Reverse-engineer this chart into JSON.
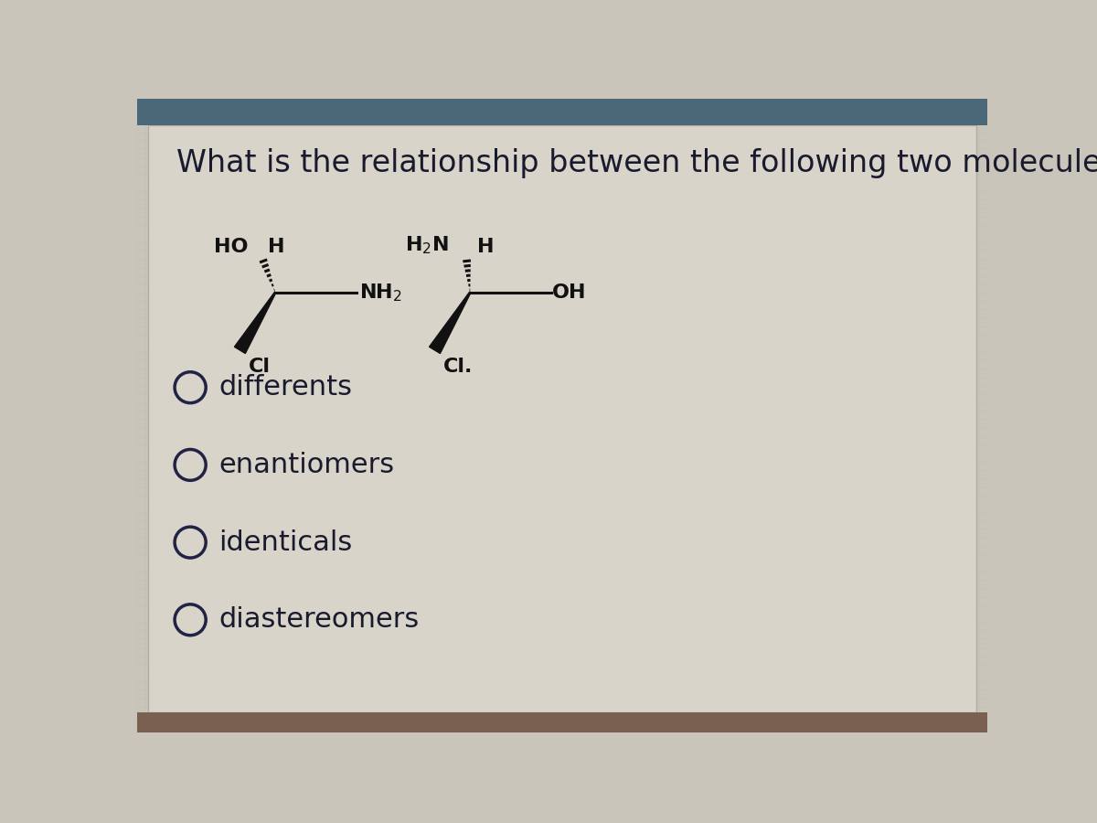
{
  "title": "What is the relationship between the following two molecules?",
  "title_fontsize": 24,
  "background_color": "#c9c5ba",
  "content_color": "#d8d4ca",
  "top_bar_color": "#4a6878",
  "bottom_bar_color": "#7a6050",
  "text_color": "#1a1a2e",
  "options": [
    "differents",
    "enantiomers",
    "identicals",
    "diastereomers"
  ],
  "options_fontsize": 22,
  "mol_fontsize": 16,
  "mol_fontsize_label": 14
}
